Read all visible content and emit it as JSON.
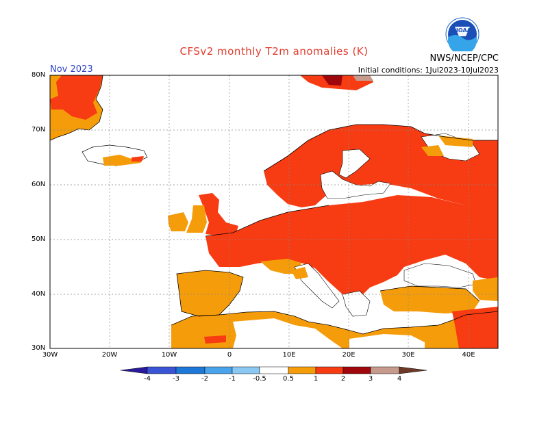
{
  "title": "CFSv2 monthly T2m anomalies (K)",
  "organization": "NWS/NCEP/CPC",
  "logo_text": "NOAA",
  "forecast_month": "Nov 2023",
  "initial_conditions": "Initial conditions: 1Jul2023-10Jul2023",
  "lat_labels": [
    "80N",
    "70N",
    "60N",
    "50N",
    "40N",
    "30N"
  ],
  "lon_labels": [
    "30W",
    "20W",
    "10W",
    "0",
    "10E",
    "20E",
    "30E",
    "40E"
  ],
  "colorbar": {
    "labels": [
      "-4",
      "-3",
      "-2",
      "-1",
      "-0.5",
      "0.5",
      "1",
      "2",
      "3",
      "4"
    ],
    "colors": [
      "#2a1a9c",
      "#3a54d6",
      "#1e78d8",
      "#4aa4ec",
      "#8cc8f4",
      "#ffffff",
      "#f59c0a",
      "#f73b12",
      "#a0070c",
      "#c79a8e",
      "#6e3a28"
    ]
  },
  "map_colors": {
    "anomaly_0_5_to_1": "#f59c0a",
    "anomaly_1_to_2": "#f73b12",
    "anomaly_2_to_3": "#a0070c",
    "anomaly_3_to_4": "#c79a8e"
  }
}
